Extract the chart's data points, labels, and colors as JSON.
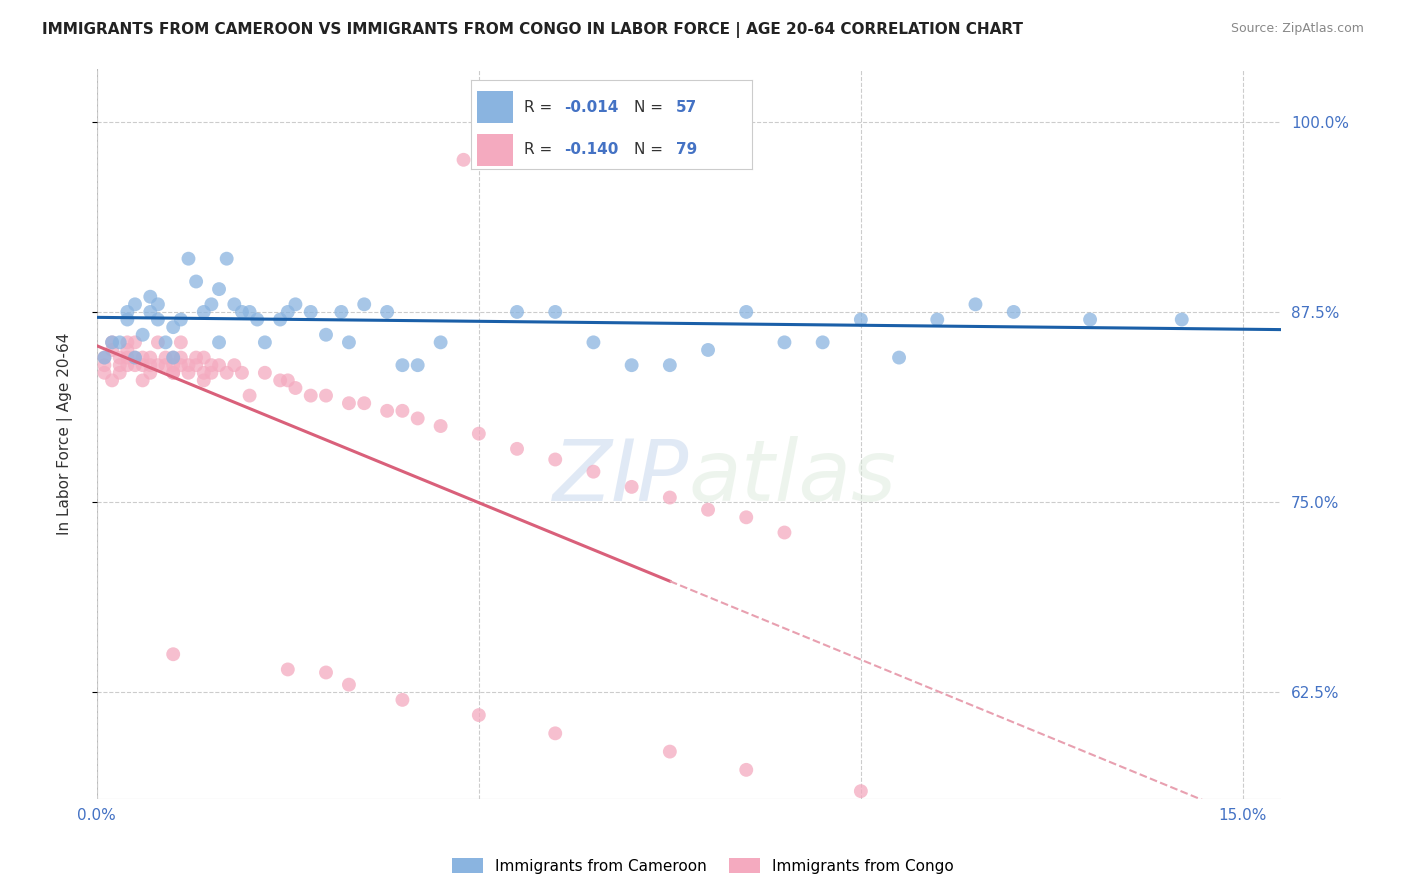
{
  "title": "IMMIGRANTS FROM CAMEROON VS IMMIGRANTS FROM CONGO IN LABOR FORCE | AGE 20-64 CORRELATION CHART",
  "source": "Source: ZipAtlas.com",
  "ylabel": "In Labor Force | Age 20-64",
  "xlim": [
    0.0,
    0.155
  ],
  "ylim": [
    0.555,
    1.035
  ],
  "xticks": [
    0.0,
    0.05,
    0.1,
    0.15
  ],
  "xticklabels": [
    "0.0%",
    "",
    "",
    "15.0%"
  ],
  "yticks": [
    0.625,
    0.75,
    0.875,
    1.0
  ],
  "yticklabels": [
    "62.5%",
    "75.0%",
    "87.5%",
    "100.0%"
  ],
  "grid_color": "#cccccc",
  "background_color": "#ffffff",
  "watermark": "ZIPatlas",
  "cam_color": "#8ab4e0",
  "con_color": "#f4aabf",
  "cam_line_color": "#1a5fa8",
  "con_line_solid_color": "#d9607a",
  "con_line_dash_color": "#e8a0b0",
  "series": [
    {
      "name": "Immigrants from Cameroon",
      "R": -0.014,
      "N": 57
    },
    {
      "name": "Immigrants from Congo",
      "R": -0.14,
      "N": 79
    }
  ],
  "cam_x": [
    0.001,
    0.002,
    0.003,
    0.004,
    0.004,
    0.005,
    0.005,
    0.006,
    0.007,
    0.007,
    0.008,
    0.008,
    0.009,
    0.01,
    0.01,
    0.011,
    0.012,
    0.013,
    0.014,
    0.015,
    0.016,
    0.016,
    0.017,
    0.018,
    0.019,
    0.02,
    0.021,
    0.022,
    0.024,
    0.025,
    0.026,
    0.028,
    0.03,
    0.032,
    0.033,
    0.035,
    0.038,
    0.04,
    0.042,
    0.045,
    0.05,
    0.055,
    0.06,
    0.065,
    0.07,
    0.075,
    0.08,
    0.085,
    0.09,
    0.095,
    0.1,
    0.105,
    0.11,
    0.115,
    0.12,
    0.13,
    0.142
  ],
  "cam_y": [
    0.845,
    0.855,
    0.855,
    0.87,
    0.875,
    0.88,
    0.845,
    0.86,
    0.875,
    0.885,
    0.87,
    0.88,
    0.855,
    0.865,
    0.845,
    0.87,
    0.91,
    0.895,
    0.875,
    0.88,
    0.89,
    0.855,
    0.91,
    0.88,
    0.875,
    0.875,
    0.87,
    0.855,
    0.87,
    0.875,
    0.88,
    0.875,
    0.86,
    0.875,
    0.855,
    0.88,
    0.875,
    0.84,
    0.84,
    0.855,
    0.975,
    0.875,
    0.875,
    0.855,
    0.84,
    0.84,
    0.85,
    0.875,
    0.855,
    0.855,
    0.87,
    0.845,
    0.87,
    0.88,
    0.875,
    0.87,
    0.87
  ],
  "con_x": [
    0.001,
    0.001,
    0.001,
    0.002,
    0.002,
    0.002,
    0.003,
    0.003,
    0.003,
    0.004,
    0.004,
    0.004,
    0.004,
    0.005,
    0.005,
    0.005,
    0.006,
    0.006,
    0.006,
    0.007,
    0.007,
    0.007,
    0.008,
    0.008,
    0.009,
    0.009,
    0.01,
    0.01,
    0.01,
    0.01,
    0.011,
    0.011,
    0.011,
    0.012,
    0.012,
    0.013,
    0.013,
    0.014,
    0.014,
    0.014,
    0.015,
    0.015,
    0.016,
    0.017,
    0.018,
    0.019,
    0.02,
    0.022,
    0.024,
    0.025,
    0.026,
    0.028,
    0.03,
    0.033,
    0.035,
    0.038,
    0.04,
    0.042,
    0.045,
    0.048,
    0.05,
    0.055,
    0.06,
    0.065,
    0.07,
    0.075,
    0.08,
    0.085,
    0.09,
    0.01,
    0.025,
    0.03,
    0.033,
    0.04,
    0.05,
    0.06,
    0.075,
    0.085,
    0.1
  ],
  "con_y": [
    0.845,
    0.84,
    0.835,
    0.855,
    0.85,
    0.83,
    0.845,
    0.84,
    0.835,
    0.85,
    0.845,
    0.84,
    0.855,
    0.845,
    0.84,
    0.855,
    0.845,
    0.84,
    0.83,
    0.845,
    0.84,
    0.835,
    0.855,
    0.84,
    0.845,
    0.84,
    0.835,
    0.84,
    0.845,
    0.835,
    0.845,
    0.84,
    0.855,
    0.84,
    0.835,
    0.845,
    0.84,
    0.835,
    0.845,
    0.83,
    0.84,
    0.835,
    0.84,
    0.835,
    0.84,
    0.835,
    0.82,
    0.835,
    0.83,
    0.83,
    0.825,
    0.82,
    0.82,
    0.815,
    0.815,
    0.81,
    0.81,
    0.805,
    0.8,
    0.975,
    0.795,
    0.785,
    0.778,
    0.77,
    0.76,
    0.753,
    0.745,
    0.74,
    0.73,
    0.65,
    0.64,
    0.638,
    0.63,
    0.62,
    0.61,
    0.598,
    0.586,
    0.574,
    0.56
  ]
}
